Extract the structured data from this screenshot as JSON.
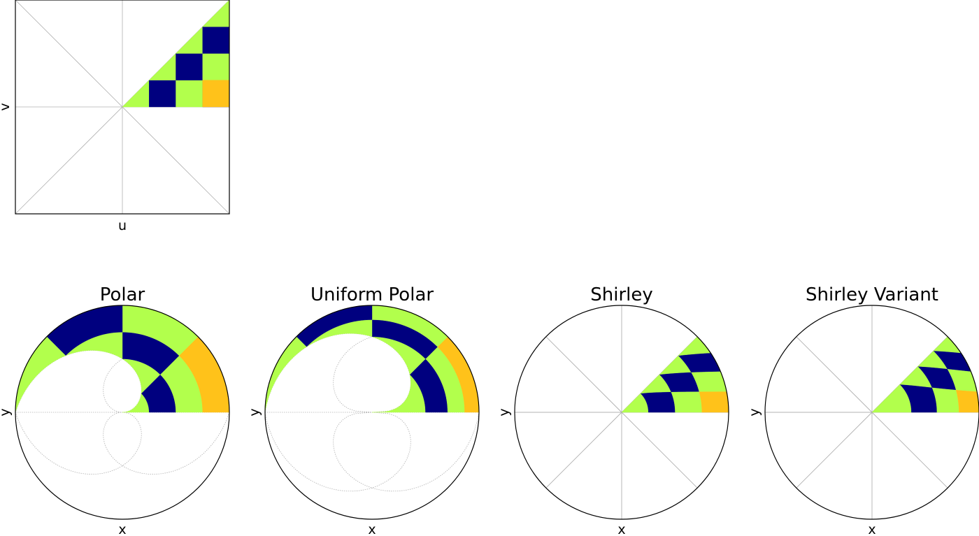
{
  "colors": {
    "navy": "#00007f",
    "lime": "#b2ff4c",
    "gold": "#ffc21a",
    "grid": "#b0b0b0",
    "frame": "#000000"
  },
  "source": {
    "xlabel": "u",
    "ylabel": "v",
    "grid": true,
    "region": "upper-right triangle, checkerboard of 4 columns x 4 rows"
  },
  "panels": [
    {
      "title": "Polar",
      "xlabel": "x",
      "ylabel": "y"
    },
    {
      "title": "Uniform Polar",
      "xlabel": "x",
      "ylabel": "y"
    },
    {
      "title": "Shirley",
      "xlabel": "x",
      "ylabel": "y"
    },
    {
      "title": "Shirley Variant",
      "xlabel": "x",
      "ylabel": "y"
    }
  ]
}
